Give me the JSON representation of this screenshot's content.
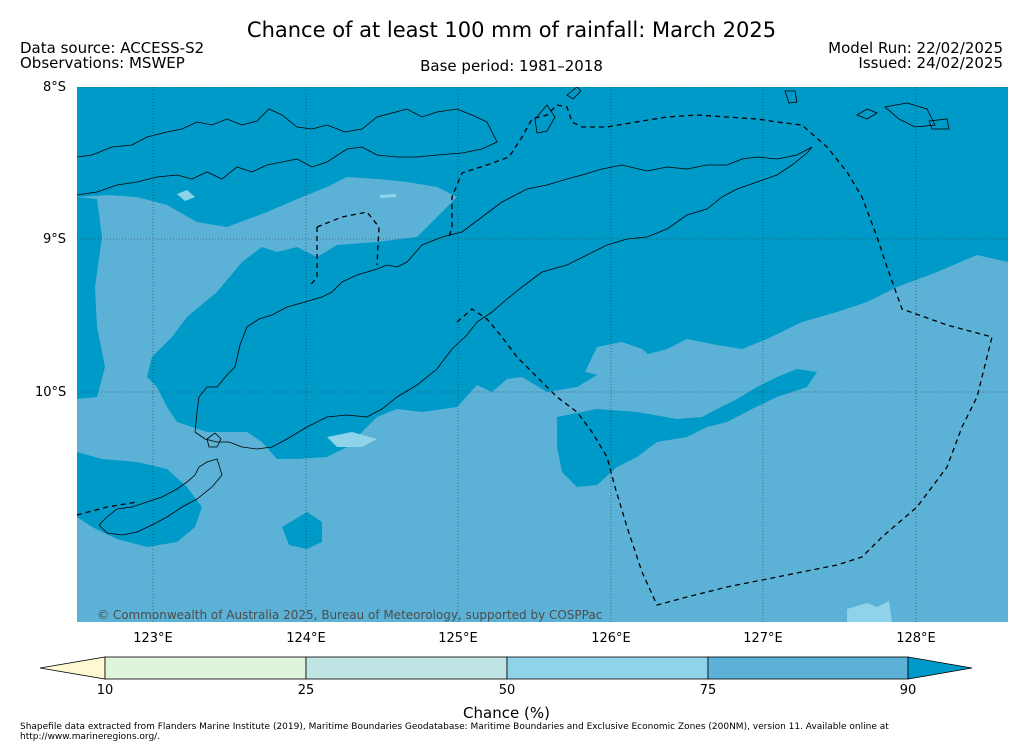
{
  "header": {
    "title": "Chance of at least 100 mm of rainfall: March 2025",
    "data_source": "Data source: ACCESS-S2",
    "observations": "Observations: MSWEP",
    "base_period": "Base period: 1981–2018",
    "model_run": "Model Run: 22/02/2025",
    "issued": "Issued: 24/02/2025"
  },
  "map": {
    "lat_labels": [
      "8°S",
      "9°S",
      "10°S"
    ],
    "lon_labels": [
      "123°E",
      "124°E",
      "125°E",
      "126°E",
      "127°E",
      "128°E"
    ],
    "copyright": "© Commonwealth of Australia 2025, Bureau of Meteorology, supported by COSPPac",
    "colors": {
      "90_plus": "#009ac8",
      "75_90": "#5bb2d6",
      "50_75": "#8fd3ea",
      "25_50": "#c1e4e4",
      "10_25": "#dff5db",
      "below_10": "#fff9d2",
      "coastline": "#000000",
      "eez_boundary": "#000000"
    }
  },
  "colorbar": {
    "ticks": [
      "10",
      "25",
      "50",
      "75",
      "90"
    ],
    "label": "Chance (%)"
  },
  "footnote": "Shapefile data extracted from Flanders Marine Institute (2019), Maritime Boundaries Geodatabase: Maritime Boundaries and Exclusive Economic Zones (200NM), version 11. Available online at http://www.marineregions.org/."
}
